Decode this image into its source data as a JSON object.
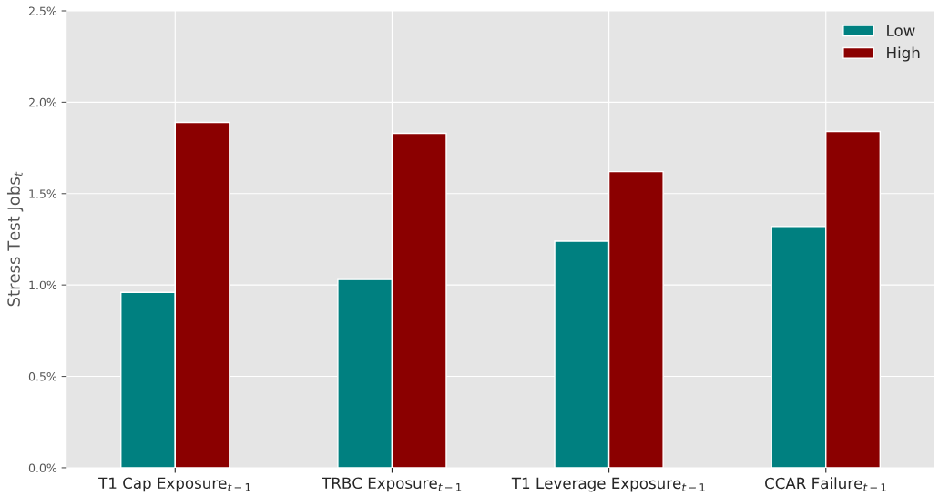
{
  "chart_data": {
    "type": "bar",
    "ylabel": "Stress Test Jobs$_{t}$",
    "categories": [
      "T1 Cap Exposure$_{t−1}$",
      "TRBC Exposure$_{t−1}$",
      "T1 Leverage Exposure$_{t−1}$",
      "CCAR Failure$_{t−1}$"
    ],
    "series": [
      {
        "name": "Low",
        "color": "#008080",
        "values": [
          0.96,
          1.03,
          1.24,
          1.32
        ]
      },
      {
        "name": "High",
        "color": "#8b0000",
        "values": [
          1.89,
          1.83,
          1.62,
          1.84
        ]
      }
    ],
    "ylim": [
      0,
      2.5
    ],
    "yticks": [
      {
        "value": 0,
        "label": "0.0%"
      },
      {
        "value": 0.5,
        "label": "0.5%"
      },
      {
        "value": 1.0,
        "label": "1.0%"
      },
      {
        "value": 1.5,
        "label": "1.5%"
      },
      {
        "value": 2.0,
        "label": "2.0%"
      },
      {
        "value": 2.5,
        "label": "2.5%"
      }
    ],
    "grid": true,
    "legend": "top right"
  }
}
